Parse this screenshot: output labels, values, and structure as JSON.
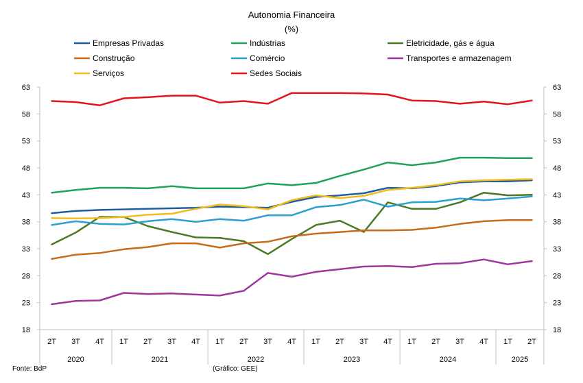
{
  "chart_data": {
    "type": "line",
    "title": "Autonomia Financeira",
    "subtitle": "(%)",
    "ylim": [
      18,
      63
    ],
    "yticks": [
      18,
      23,
      28,
      33,
      38,
      43,
      48,
      53,
      58,
      63
    ],
    "grid": false,
    "legend_position": "top",
    "quarters": [
      "2T",
      "3T",
      "4T",
      "1T",
      "2T",
      "3T",
      "4T",
      "1T",
      "2T",
      "3T",
      "4T",
      "1T",
      "2T",
      "3T",
      "4T",
      "1T",
      "2T",
      "3T",
      "4T",
      "1T",
      "2T"
    ],
    "years": [
      {
        "label": "2020",
        "count": 3
      },
      {
        "label": "2021",
        "count": 4
      },
      {
        "label": "2022",
        "count": 4
      },
      {
        "label": "2023",
        "count": 4
      },
      {
        "label": "2024",
        "count": 4
      },
      {
        "label": "2025",
        "count": 2
      }
    ],
    "series": [
      {
        "name": "Empresas Privadas",
        "color": "#1f5f9f",
        "values": [
          39.6,
          40.0,
          40.2,
          40.3,
          40.4,
          40.5,
          40.6,
          40.8,
          40.7,
          40.6,
          41.7,
          42.6,
          42.9,
          43.3,
          44.3,
          44.2,
          44.6,
          45.3,
          45.5,
          45.5,
          45.7
        ]
      },
      {
        "name": "Indústrias",
        "color": "#1fa35a",
        "values": [
          43.4,
          43.9,
          44.3,
          44.3,
          44.2,
          44.6,
          44.2,
          44.2,
          44.2,
          45.1,
          44.8,
          45.2,
          46.5,
          47.7,
          49.0,
          48.5,
          49.0,
          49.9,
          49.9,
          49.8,
          49.8
        ]
      },
      {
        "name": "Eletricidade, gás e água",
        "color": "#4a7a25",
        "values": [
          33.8,
          36.0,
          38.9,
          38.9,
          37.2,
          36.1,
          35.1,
          35.0,
          34.4,
          32.0,
          34.8,
          37.4,
          38.2,
          36.1,
          41.6,
          40.4,
          40.4,
          41.6,
          43.4,
          42.9,
          43.0
        ]
      },
      {
        "name": "Construção",
        "color": "#c56b1c",
        "values": [
          31.1,
          31.9,
          32.2,
          32.9,
          33.3,
          34.0,
          34.0,
          33.2,
          34.0,
          34.3,
          35.3,
          35.8,
          36.1,
          36.4,
          36.4,
          36.5,
          36.9,
          37.6,
          38.1,
          38.3,
          38.3
        ]
      },
      {
        "name": "Comércio",
        "color": "#2a9fd0",
        "values": [
          37.4,
          38.1,
          37.6,
          37.5,
          38.1,
          38.5,
          38.0,
          38.5,
          38.2,
          39.2,
          39.2,
          40.7,
          41.1,
          42.1,
          40.8,
          41.6,
          41.7,
          42.3,
          42.0,
          42.3,
          42.7
        ]
      },
      {
        "name": "Transportes e armazenagem",
        "color": "#a0369b",
        "values": [
          22.7,
          23.3,
          23.4,
          24.8,
          24.6,
          24.7,
          24.5,
          24.3,
          25.2,
          28.5,
          27.8,
          28.7,
          29.2,
          29.7,
          29.8,
          29.6,
          30.2,
          30.3,
          31.0,
          30.1,
          30.7
        ]
      },
      {
        "name": "Serviços",
        "color": "#f2bc1a",
        "values": [
          38.7,
          38.6,
          38.7,
          38.9,
          39.3,
          39.5,
          40.4,
          41.2,
          40.9,
          40.3,
          42.0,
          42.9,
          42.4,
          42.8,
          43.9,
          44.3,
          44.8,
          45.5,
          45.7,
          45.8,
          45.9
        ]
      },
      {
        "name": "Sedes Sociais",
        "color": "#e3151b",
        "values": [
          60.4,
          60.2,
          59.6,
          60.9,
          61.1,
          61.4,
          61.4,
          60.1,
          60.4,
          59.9,
          61.9,
          61.9,
          61.9,
          61.8,
          61.6,
          60.5,
          60.4,
          59.9,
          60.3,
          59.8,
          60.5
        ]
      }
    ]
  },
  "footer": {
    "source": "Fonte: BdP",
    "credit": "(Gráfico: GEE)"
  }
}
